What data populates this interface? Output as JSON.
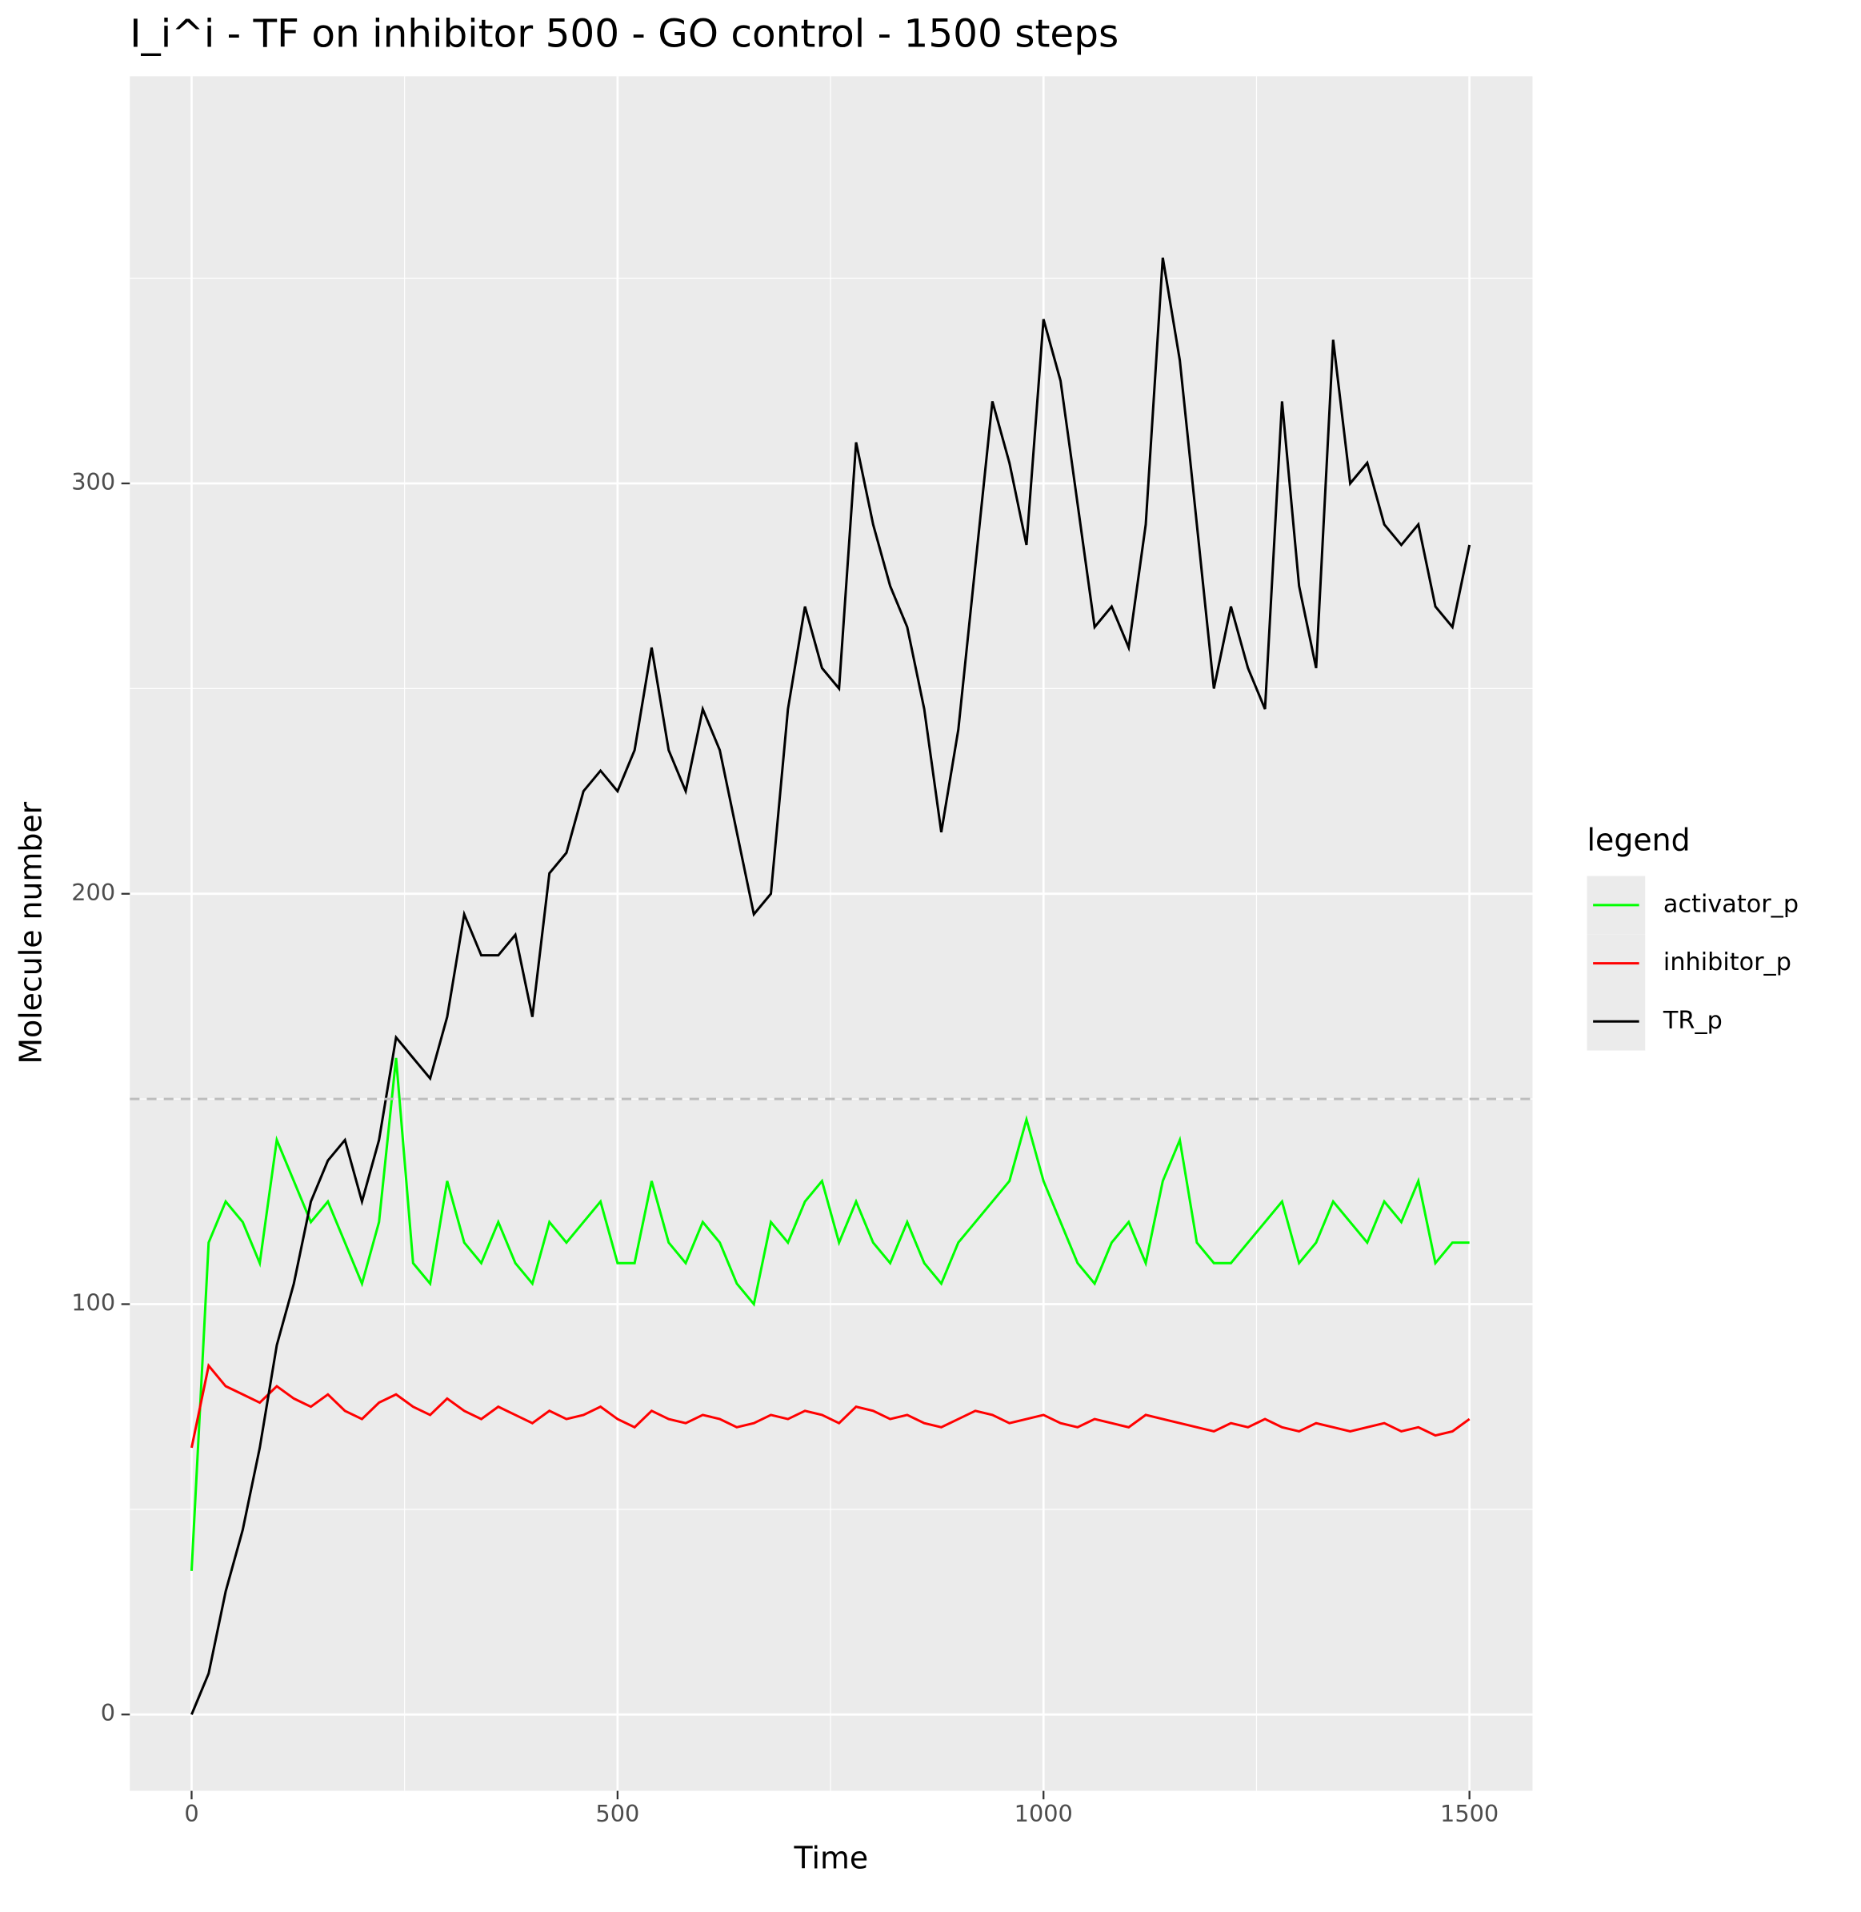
{
  "chart_data": {
    "type": "line",
    "title": "I_i^i - TF on inhibitor 500 - GO control - 1500 steps",
    "x_label": "Time",
    "y_label": "Molecule number",
    "legend_title": "legend",
    "legend_position": "right",
    "grid": true,
    "xlim": [
      -72.5,
      1574
    ],
    "ylim": [
      -18.6,
      399.2
    ],
    "xticks": [
      0,
      500,
      1000,
      1500
    ],
    "yticks": [
      0,
      100,
      200,
      300
    ],
    "reference_line": 150,
    "x": [
      0,
      20,
      40,
      60,
      80,
      100,
      120,
      140,
      160,
      180,
      200,
      220,
      240,
      260,
      280,
      300,
      320,
      340,
      360,
      380,
      400,
      420,
      440,
      460,
      480,
      500,
      520,
      540,
      560,
      580,
      600,
      620,
      640,
      660,
      680,
      700,
      720,
      740,
      760,
      780,
      800,
      820,
      840,
      860,
      880,
      900,
      920,
      940,
      960,
      980,
      1000,
      1020,
      1040,
      1060,
      1080,
      1100,
      1120,
      1140,
      1160,
      1180,
      1200,
      1220,
      1240,
      1260,
      1280,
      1300,
      1320,
      1340,
      1360,
      1380,
      1400,
      1420,
      1440,
      1460,
      1480,
      1500
    ],
    "series": [
      {
        "name": "activator_p",
        "color": "#00ff00",
        "values": [
          35,
          115,
          125,
          120,
          110,
          140,
          130,
          120,
          125,
          115,
          105,
          120,
          160,
          110,
          105,
          130,
          115,
          110,
          120,
          110,
          105,
          120,
          115,
          120,
          125,
          110,
          110,
          130,
          115,
          110,
          120,
          115,
          105,
          100,
          120,
          115,
          125,
          130,
          115,
          125,
          115,
          110,
          120,
          110,
          105,
          115,
          120,
          125,
          130,
          145,
          130,
          120,
          110,
          105,
          115,
          120,
          110,
          130,
          140,
          115,
          110,
          110,
          115,
          120,
          125,
          110,
          115,
          125,
          120,
          115,
          125,
          120,
          130,
          110,
          115,
          115
        ]
      },
      {
        "name": "inhibitor_p",
        "color": "#ff0000",
        "values": [
          65,
          85,
          80,
          78,
          76,
          80,
          77,
          75,
          78,
          74,
          72,
          76,
          78,
          75,
          73,
          77,
          74,
          72,
          75,
          73,
          71,
          74,
          72,
          73,
          75,
          72,
          70,
          74,
          72,
          71,
          73,
          72,
          70,
          71,
          73,
          72,
          74,
          73,
          71,
          75,
          74,
          72,
          73,
          71,
          70,
          72,
          74,
          73,
          71,
          72,
          73,
          71,
          70,
          72,
          71,
          70,
          73,
          72,
          71,
          70,
          69,
          71,
          70,
          72,
          70,
          69,
          71,
          70,
          69,
          70,
          71,
          69,
          70,
          68,
          69,
          72
        ]
      },
      {
        "name": "TR_p",
        "color": "#000000",
        "values": [
          0,
          10,
          30,
          45,
          65,
          90,
          105,
          125,
          135,
          140,
          125,
          140,
          165,
          160,
          155,
          170,
          195,
          185,
          185,
          190,
          170,
          205,
          210,
          225,
          230,
          225,
          235,
          260,
          235,
          225,
          245,
          235,
          215,
          195,
          200,
          245,
          270,
          255,
          250,
          310,
          290,
          275,
          265,
          245,
          215,
          240,
          280,
          320,
          305,
          285,
          340,
          325,
          295,
          265,
          270,
          260,
          290,
          355,
          330,
          290,
          250,
          270,
          255,
          245,
          320,
          275,
          255,
          335,
          300,
          305,
          290,
          285,
          290,
          270,
          265,
          285
        ]
      }
    ]
  }
}
